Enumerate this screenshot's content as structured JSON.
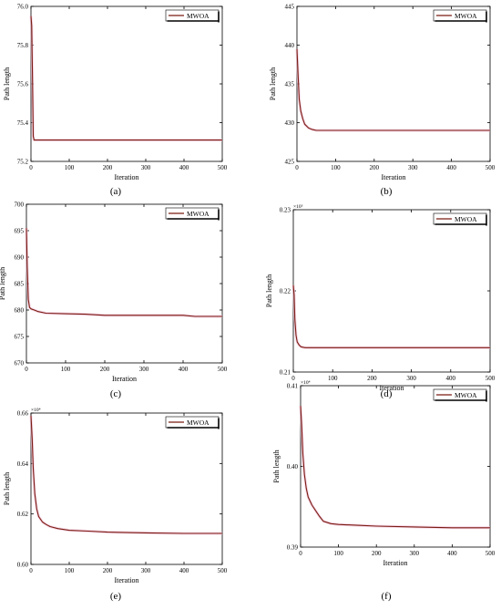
{
  "chart_data": [
    {
      "type": "line",
      "caption": "(a)",
      "xlabel": "Iteration",
      "ylabel": "Path length",
      "exponent_label": "",
      "xlim": [
        0,
        500
      ],
      "ylim": [
        75.2,
        76.0
      ],
      "xticks": [
        "0",
        "100",
        "200",
        "300",
        "400",
        "500"
      ],
      "yticks": [
        "75.2",
        "75.4",
        "75.6",
        "75.8",
        "76.0"
      ],
      "legend": "MWOA",
      "line_color": "#7a1c12",
      "series": [
        {
          "name": "MWOA",
          "x": [
            0,
            2,
            4,
            6,
            8,
            10,
            500
          ],
          "y": [
            75.95,
            75.9,
            75.62,
            75.33,
            75.31,
            75.31,
            75.31
          ]
        }
      ]
    },
    {
      "type": "line",
      "caption": "(b)",
      "xlabel": "Iteration",
      "ylabel": "Path length",
      "exponent_label": "",
      "xlim": [
        0,
        500
      ],
      "ylim": [
        425,
        445
      ],
      "xticks": [
        "0",
        "100",
        "200",
        "300",
        "400",
        "500"
      ],
      "yticks": [
        "425",
        "430",
        "435",
        "440",
        "445"
      ],
      "legend": "MWOA",
      "line_color": "#7a1c12",
      "series": [
        {
          "name": "MWOA",
          "x": [
            0,
            3,
            6,
            10,
            15,
            20,
            30,
            40,
            50,
            100,
            500
          ],
          "y": [
            439.5,
            436.0,
            433.0,
            431.5,
            430.5,
            429.8,
            429.3,
            429.1,
            429.0,
            429.0,
            429.0
          ]
        }
      ]
    },
    {
      "type": "line",
      "caption": "(c)",
      "xlabel": "Iteration",
      "ylabel": "Path length",
      "exponent_label": "",
      "xlim": [
        0,
        500
      ],
      "ylim": [
        670,
        700
      ],
      "xticks": [
        "0",
        "100",
        "200",
        "300",
        "400",
        "500"
      ],
      "yticks": [
        "670",
        "675",
        "680",
        "685",
        "690",
        "695",
        "700"
      ],
      "legend": "MWOA",
      "line_color": "#7a1c12",
      "series": [
        {
          "name": "MWOA",
          "x": [
            0,
            2,
            5,
            8,
            12,
            20,
            30,
            50,
            100,
            150,
            200,
            300,
            400,
            430,
            500
          ],
          "y": [
            695.5,
            688.0,
            682.0,
            680.5,
            680.2,
            680.0,
            679.7,
            679.4,
            679.3,
            679.2,
            679.0,
            679.0,
            679.0,
            678.8,
            678.8
          ]
        }
      ]
    },
    {
      "type": "line",
      "caption": "(d)",
      "xlabel": "Iteration",
      "ylabel": "Path length",
      "exponent_label": "×10⁵",
      "xlim": [
        0,
        500
      ],
      "ylim": [
        0.21,
        0.23
      ],
      "xticks": [
        "0",
        "100",
        "200",
        "300",
        "400",
        "500"
      ],
      "yticks": [
        "0.21",
        "0.22",
        "0.23"
      ],
      "legend": "MWOA",
      "line_color": "#7a1c12",
      "series": [
        {
          "name": "MWOA",
          "x": [
            0,
            2,
            4,
            7,
            10,
            15,
            20,
            30,
            50,
            100,
            500
          ],
          "y": [
            0.2207,
            0.2195,
            0.2165,
            0.2145,
            0.2137,
            0.2133,
            0.2131,
            0.213,
            0.213,
            0.213,
            0.213
          ]
        }
      ]
    },
    {
      "type": "line",
      "caption": "(e)",
      "xlabel": "Iteration",
      "ylabel": "Path length",
      "exponent_label": "×10⁴",
      "xlim": [
        0,
        500
      ],
      "ylim": [
        0.6,
        0.66
      ],
      "xticks": [
        "0",
        "100",
        "200",
        "300",
        "400",
        "500"
      ],
      "yticks": [
        "0.60",
        "0.62",
        "0.64",
        "0.66"
      ],
      "legend": "MWOA",
      "line_color": "#7a1c12",
      "series": [
        {
          "name": "MWOA",
          "x": [
            0,
            3,
            6,
            10,
            15,
            20,
            30,
            40,
            50,
            70,
            100,
            150,
            200,
            300,
            400,
            500
          ],
          "y": [
            0.659,
            0.65,
            0.638,
            0.628,
            0.622,
            0.619,
            0.6168,
            0.6158,
            0.615,
            0.6142,
            0.6135,
            0.6132,
            0.6128,
            0.6125,
            0.6123,
            0.6123
          ]
        }
      ]
    },
    {
      "type": "line",
      "caption": "(f)",
      "xlabel": "Iteration",
      "ylabel": "Path length",
      "exponent_label": "×10⁴",
      "xlim": [
        0,
        500
      ],
      "ylim": [
        0.39,
        0.41
      ],
      "xticks": [
        "0",
        "100",
        "200",
        "300",
        "400",
        "500"
      ],
      "yticks": [
        "0.39",
        "0.40",
        "0.41"
      ],
      "legend": "MWOA",
      "line_color": "#7a1c12",
      "series": [
        {
          "name": "MWOA",
          "x": [
            0,
            3,
            6,
            10,
            15,
            20,
            30,
            40,
            50,
            60,
            80,
            100,
            150,
            200,
            300,
            400,
            500
          ],
          "y": [
            0.4075,
            0.405,
            0.4015,
            0.399,
            0.3973,
            0.3962,
            0.3952,
            0.3945,
            0.3938,
            0.3932,
            0.3929,
            0.3928,
            0.3927,
            0.3926,
            0.3925,
            0.3924,
            0.3924
          ]
        }
      ]
    }
  ]
}
